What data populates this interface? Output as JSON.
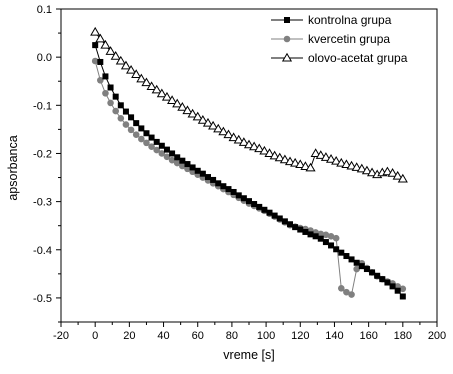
{
  "chart_data": {
    "type": "scatter",
    "title": "",
    "xlabel": "vreme [s]",
    "ylabel": "apsorbanca",
    "xlim": [
      -20,
      200
    ],
    "ylim": [
      -0.55,
      0.1
    ],
    "x_ticks": [
      -20,
      0,
      20,
      40,
      60,
      80,
      100,
      120,
      140,
      160,
      180,
      200
    ],
    "y_ticks": [
      0.1,
      0.0,
      -0.1,
      -0.2,
      -0.3,
      -0.4,
      -0.5
    ],
    "x_tick_labels": [
      "-20",
      "0",
      "20",
      "40",
      "60",
      "80",
      "100",
      "120",
      "140",
      "160",
      "180",
      "200"
    ],
    "y_tick_labels": [
      "0.1",
      "0.0",
      "-0.1",
      "-0.2",
      "-0.3",
      "-0.4",
      "-0.5"
    ],
    "grid": false,
    "legend_position": "top-right",
    "x": [
      0,
      3,
      6,
      9,
      12,
      15,
      18,
      21,
      24,
      27,
      30,
      33,
      36,
      39,
      42,
      45,
      48,
      51,
      54,
      57,
      60,
      63,
      66,
      69,
      72,
      75,
      78,
      81,
      84,
      87,
      90,
      93,
      96,
      99,
      102,
      105,
      108,
      111,
      114,
      117,
      120,
      123,
      126,
      129,
      132,
      135,
      138,
      141,
      144,
      147,
      150,
      153,
      156,
      159,
      162,
      165,
      168,
      171,
      174,
      177,
      180
    ],
    "series": [
      {
        "name": "kontrolna grupa",
        "color": "#000000",
        "marker": "square",
        "values": [
          0.025,
          -0.01,
          -0.04,
          -0.063,
          -0.082,
          -0.1,
          -0.113,
          -0.125,
          -0.137,
          -0.148,
          -0.158,
          -0.167,
          -0.176,
          -0.184,
          -0.192,
          -0.2,
          -0.208,
          -0.215,
          -0.222,
          -0.229,
          -0.236,
          -0.242,
          -0.249,
          -0.255,
          -0.262,
          -0.268,
          -0.274,
          -0.28,
          -0.287,
          -0.293,
          -0.299,
          -0.305,
          -0.311,
          -0.317,
          -0.323,
          -0.329,
          -0.335,
          -0.341,
          -0.347,
          -0.353,
          -0.358,
          -0.363,
          -0.368,
          -0.372,
          -0.377,
          -0.384,
          -0.391,
          -0.399,
          -0.406,
          -0.413,
          -0.42,
          -0.427,
          -0.434,
          -0.44,
          -0.447,
          -0.454,
          -0.461,
          -0.468,
          -0.476,
          -0.485,
          -0.497
        ]
      },
      {
        "name": "kvercetin grupa",
        "color": "#808080",
        "marker": "circle",
        "values": [
          -0.008,
          -0.048,
          -0.075,
          -0.095,
          -0.112,
          -0.127,
          -0.14,
          -0.151,
          -0.161,
          -0.17,
          -0.178,
          -0.186,
          -0.193,
          -0.2,
          -0.207,
          -0.214,
          -0.22,
          -0.226,
          -0.232,
          -0.238,
          -0.244,
          -0.25,
          -0.256,
          -0.262,
          -0.268,
          -0.274,
          -0.28,
          -0.286,
          -0.292,
          -0.298,
          -0.304,
          -0.309,
          -0.314,
          -0.319,
          -0.325,
          -0.331,
          -0.337,
          -0.343,
          -0.349,
          -0.352,
          -0.355,
          -0.357,
          -0.36,
          -0.364,
          -0.367,
          -0.369,
          -0.372,
          -0.376,
          -0.48,
          -0.488,
          -0.493,
          -0.44,
          -0.428,
          -0.438,
          -0.447,
          -0.455,
          -0.461,
          -0.466,
          -0.47,
          -0.476,
          -0.481
        ]
      },
      {
        "name": "olovo-acetat grupa",
        "color": "#000000",
        "marker": "triangle-open",
        "values": [
          0.052,
          0.038,
          0.025,
          0.012,
          0.002,
          -0.008,
          -0.018,
          -0.027,
          -0.036,
          -0.045,
          -0.053,
          -0.061,
          -0.068,
          -0.076,
          -0.083,
          -0.09,
          -0.097,
          -0.104,
          -0.111,
          -0.118,
          -0.124,
          -0.131,
          -0.137,
          -0.143,
          -0.149,
          -0.155,
          -0.161,
          -0.167,
          -0.172,
          -0.177,
          -0.182,
          -0.186,
          -0.19,
          -0.195,
          -0.2,
          -0.205,
          -0.209,
          -0.213,
          -0.217,
          -0.22,
          -0.223,
          -0.227,
          -0.23,
          -0.2,
          -0.204,
          -0.208,
          -0.212,
          -0.216,
          -0.22,
          -0.223,
          -0.226,
          -0.229,
          -0.232,
          -0.236,
          -0.24,
          -0.244,
          -0.24,
          -0.238,
          -0.241,
          -0.247,
          -0.253
        ]
      }
    ]
  }
}
